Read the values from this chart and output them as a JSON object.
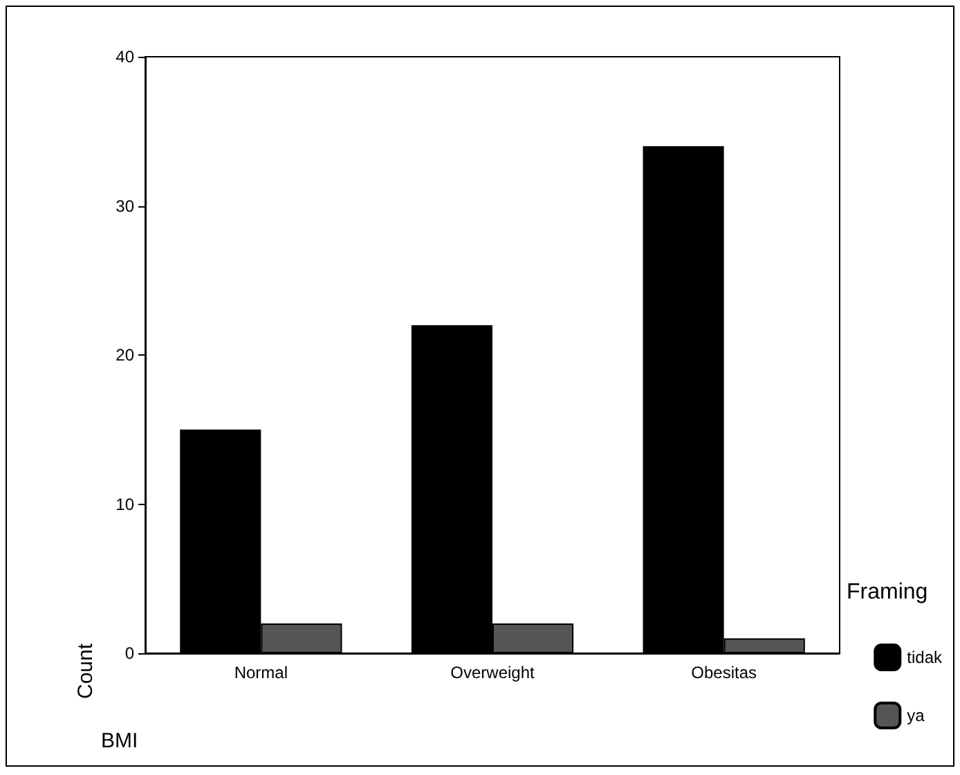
{
  "chart_data": {
    "type": "bar",
    "xlabel": "BMI",
    "ylabel": "Count",
    "legend_title": "Framing",
    "legend": "right",
    "grid": false,
    "categories": [
      "Normal",
      "Overweight",
      "Obesitas"
    ],
    "series": [
      {
        "name": "tidak",
        "color": "#000000",
        "values": [
          15,
          22,
          34
        ]
      },
      {
        "name": "ya",
        "color": "#555555",
        "values": [
          2,
          2,
          1
        ]
      }
    ],
    "ylim": [
      0,
      40
    ],
    "yticks": [
      0,
      10,
      20,
      30,
      40
    ]
  }
}
